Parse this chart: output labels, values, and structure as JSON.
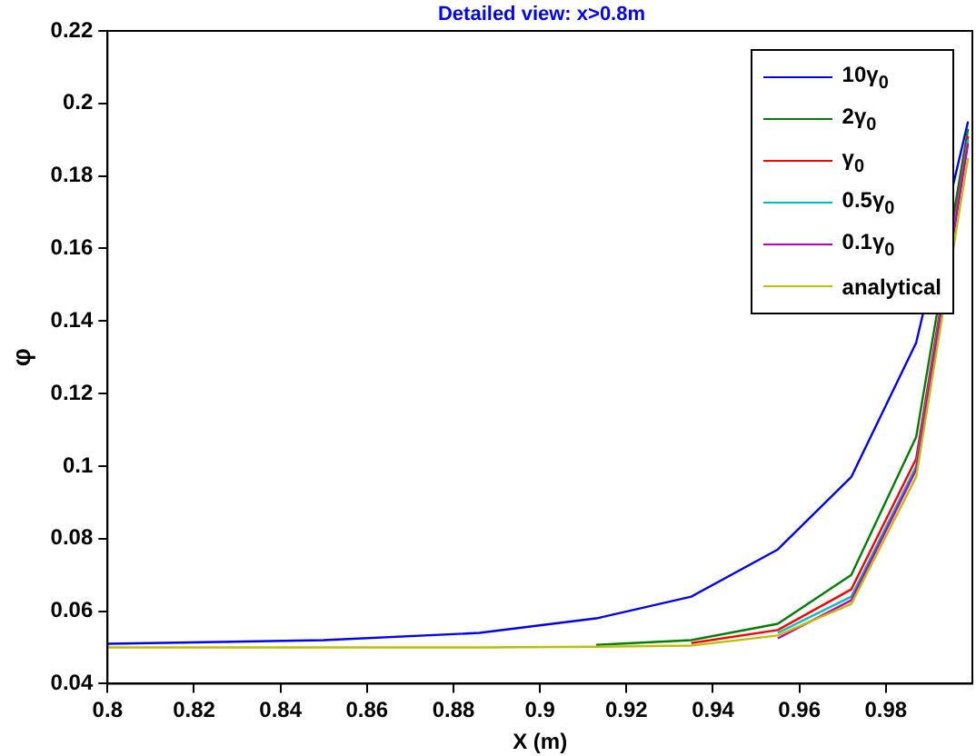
{
  "chart_data": {
    "type": "line",
    "title": "Detailed view: x>0.8m",
    "xlabel": "X (m)",
    "ylabel": "φ",
    "x": [
      0.8,
      0.85,
      0.886,
      0.913,
      0.935,
      0.955,
      0.972,
      0.987,
      0.999
    ],
    "xlim": [
      0.8,
      1.0
    ],
    "xticks": [
      0.8,
      0.82,
      0.84,
      0.86,
      0.88,
      0.9,
      0.92,
      0.94,
      0.96,
      0.98
    ],
    "ylim": [
      0.04,
      0.22
    ],
    "yticks": [
      0.04,
      0.06,
      0.08,
      0.1,
      0.12,
      0.14,
      0.16,
      0.18,
      0.2,
      0.22
    ],
    "grid": false,
    "legend": "top right",
    "marker": "none",
    "line_style": "solid",
    "series": [
      {
        "name": "10γ$_{0}$",
        "color": "#0000ff",
        "values": [
          0.051,
          0.052,
          0.054,
          0.058,
          0.064,
          0.077,
          0.097,
          0.134,
          0.195
        ]
      },
      {
        "name": "2γ$_{0}$",
        "color": "#008000",
        "values": [
          null,
          null,
          null,
          0.0507,
          0.052,
          0.0565,
          0.07,
          0.108,
          0.193
        ]
      },
      {
        "name": "γ$_{0}$",
        "color": "#ff0000",
        "values": [
          null,
          null,
          null,
          null,
          0.0512,
          0.0548,
          0.066,
          0.102,
          0.191
        ]
      },
      {
        "name": "0.5γ$_{0}$",
        "color": "#00bfbf",
        "values": [
          null,
          null,
          null,
          null,
          null,
          0.054,
          0.064,
          0.1,
          0.19
        ]
      },
      {
        "name": "0.1γ$_{0}$",
        "color": "#bf00bf",
        "values": [
          null,
          null,
          null,
          null,
          null,
          0.0525,
          0.063,
          0.099,
          0.189
        ]
      },
      {
        "name": "analytical",
        "color": "#bfbf00",
        "values": [
          0.05,
          0.05,
          0.05,
          0.0502,
          0.0505,
          0.0533,
          0.062,
          0.097,
          0.185
        ]
      }
    ]
  }
}
